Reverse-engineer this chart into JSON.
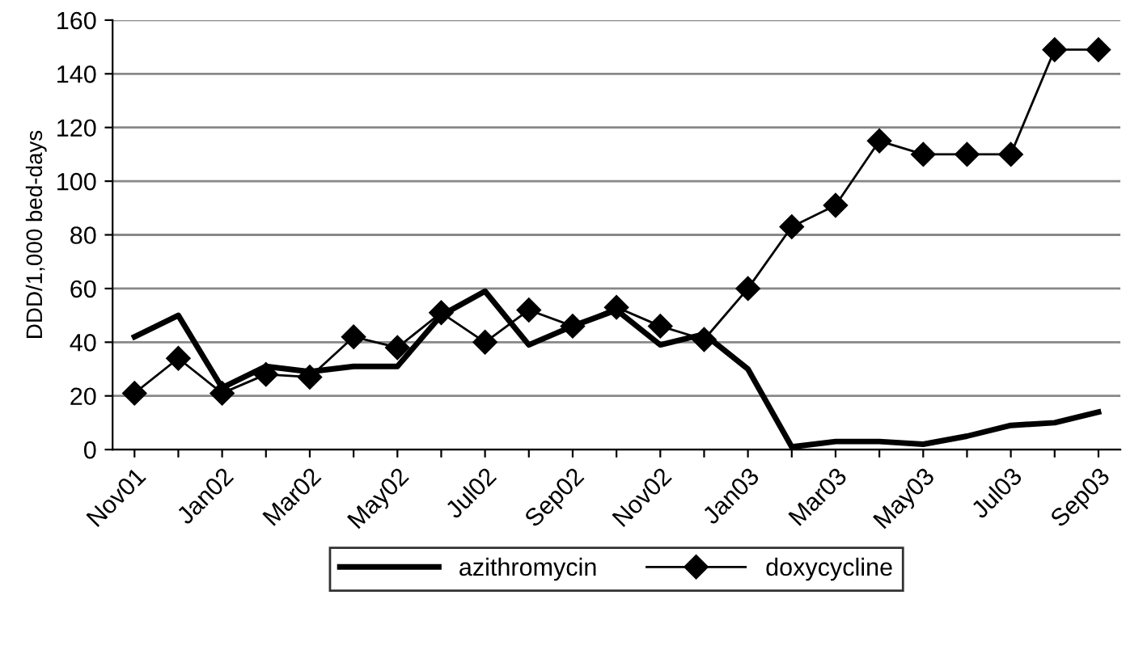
{
  "chart_data": {
    "type": "line",
    "ylabel": "DDD/1,000 bed-days",
    "categories": [
      "Nov01",
      null,
      "Jan02",
      null,
      "Mar02",
      null,
      "May02",
      null,
      "Jul02",
      null,
      "Sep02",
      null,
      "Nov02",
      null,
      "Jan03",
      null,
      "Mar03",
      null,
      "May03",
      null,
      "Jul03",
      null,
      "Sep03"
    ],
    "series": [
      {
        "name": "azithromycin",
        "color": "#000000",
        "marker": "none",
        "values": [
          42,
          50,
          23,
          31,
          29,
          31,
          31,
          50,
          59,
          39,
          46,
          52,
          39,
          43,
          30,
          1,
          3,
          3,
          2,
          5,
          9,
          10,
          14
        ]
      },
      {
        "name": "doxycycline",
        "color": "#000000",
        "marker": "diamond",
        "values": [
          21,
          34,
          21,
          28,
          27,
          42,
          38,
          51,
          40,
          52,
          46,
          53,
          46,
          41,
          60,
          83,
          91,
          115,
          110,
          110,
          110,
          149,
          149
        ]
      }
    ],
    "ylim": [
      0,
      160
    ],
    "yticks": [
      0,
      20,
      40,
      60,
      80,
      100,
      120,
      140,
      160
    ],
    "grid": "y",
    "legend": "bottom"
  }
}
